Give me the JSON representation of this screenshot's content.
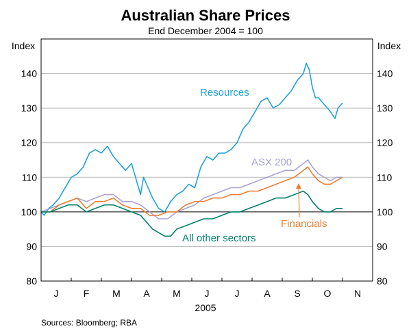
{
  "chart_data": {
    "type": "line",
    "title": "Australian Share Prices",
    "subtitle": "End December 2004 = 100",
    "y_label_left": "Index",
    "y_label_right": "Index",
    "ylim": [
      80,
      150
    ],
    "yticks": [
      80,
      90,
      100,
      110,
      120,
      130,
      140
    ],
    "xlim": [
      0,
      11
    ],
    "x_ticks": [
      {
        "label": "J",
        "at": 0.5
      },
      {
        "label": "F",
        "at": 1.5
      },
      {
        "label": "M",
        "at": 2.5
      },
      {
        "label": "A",
        "at": 3.5
      },
      {
        "label": "M",
        "at": 4.5
      },
      {
        "label": "J",
        "at": 5.5
      },
      {
        "label": "J",
        "at": 6.5
      },
      {
        "label": "A",
        "at": 7.5
      },
      {
        "label": "S",
        "at": 8.5
      },
      {
        "label": "O",
        "at": 9.5
      },
      {
        "label": "N",
        "at": 10.5
      }
    ],
    "xlabel": "2005",
    "grid": true,
    "source": "Sources: Bloomberg; RBA",
    "series": [
      {
        "name": "Resources",
        "color": "#1fa2dc",
        "x": [
          0,
          0.1,
          0.25,
          0.4,
          0.6,
          0.8,
          1.0,
          1.2,
          1.4,
          1.6,
          1.8,
          2.0,
          2.2,
          2.4,
          2.6,
          2.8,
          2.9,
          3.0,
          3.1,
          3.2,
          3.3,
          3.4,
          3.5,
          3.7,
          3.9,
          4.1,
          4.3,
          4.5,
          4.7,
          4.9,
          5.1,
          5.3,
          5.5,
          5.7,
          5.9,
          6.1,
          6.3,
          6.5,
          6.7,
          6.9,
          7.1,
          7.3,
          7.5,
          7.7,
          7.9,
          8.1,
          8.3,
          8.5,
          8.7,
          8.8,
          8.9,
          9.0,
          9.1,
          9.2,
          9.4,
          9.6,
          9.75,
          9.85,
          10.0
        ],
        "values": [
          100,
          99,
          101,
          102,
          104,
          107,
          110,
          111,
          113,
          117,
          118,
          117,
          119,
          116,
          114,
          112,
          113,
          114,
          111,
          108,
          105,
          110,
          108,
          104,
          101,
          100,
          103,
          105,
          106,
          108,
          107,
          113,
          116,
          115,
          117,
          117,
          118,
          120,
          124,
          126,
          129,
          132,
          133,
          130,
          131,
          133,
          135,
          138,
          140,
          143,
          141,
          136,
          133,
          133,
          131,
          129,
          127,
          130,
          131.5
        ]
      },
      {
        "name": "ASX 200",
        "color": "#a7a3d4",
        "x": [
          0,
          0.3,
          0.6,
          0.9,
          1.2,
          1.5,
          1.8,
          2.1,
          2.4,
          2.7,
          3.0,
          3.3,
          3.6,
          3.9,
          4.2,
          4.5,
          4.8,
          5.1,
          5.4,
          5.7,
          6.0,
          6.3,
          6.6,
          6.9,
          7.2,
          7.5,
          7.8,
          8.1,
          8.4,
          8.7,
          8.85,
          9.0,
          9.2,
          9.4,
          9.6,
          9.8,
          10.0
        ],
        "values": [
          100,
          101,
          102,
          103,
          104,
          103,
          104,
          105,
          105,
          103,
          103,
          102,
          100,
          98,
          98,
          100,
          101,
          102,
          104,
          105,
          106,
          107,
          107,
          108,
          109,
          110,
          111,
          112,
          112,
          114,
          115,
          113,
          111,
          110,
          109,
          110,
          110
        ]
      },
      {
        "name": "Financials",
        "color": "#ed7d31",
        "x": [
          0,
          0.3,
          0.6,
          0.9,
          1.2,
          1.5,
          1.8,
          2.1,
          2.4,
          2.7,
          3.0,
          3.3,
          3.6,
          3.9,
          4.2,
          4.5,
          4.8,
          5.1,
          5.4,
          5.7,
          6.0,
          6.3,
          6.6,
          6.9,
          7.2,
          7.5,
          7.8,
          8.1,
          8.4,
          8.7,
          8.85,
          9.0,
          9.2,
          9.4,
          9.6,
          9.8,
          10.0
        ],
        "values": [
          100,
          100,
          102,
          103,
          104,
          101,
          103,
          103,
          104,
          102,
          101,
          101,
          99,
          99,
          100,
          100,
          102,
          103,
          103,
          104,
          104,
          105,
          105,
          106,
          106,
          107,
          108,
          109,
          110,
          112,
          113,
          111,
          109,
          108,
          108,
          109,
          110
        ]
      },
      {
        "name": "All other sectors",
        "color": "#00806a",
        "x": [
          0,
          0.3,
          0.6,
          0.9,
          1.2,
          1.5,
          1.8,
          2.1,
          2.4,
          2.7,
          3.0,
          3.3,
          3.5,
          3.7,
          3.9,
          4.1,
          4.3,
          4.5,
          4.8,
          5.1,
          5.4,
          5.7,
          6.0,
          6.3,
          6.6,
          6.9,
          7.2,
          7.5,
          7.8,
          8.1,
          8.4,
          8.7,
          8.85,
          9.0,
          9.2,
          9.4,
          9.6,
          9.8,
          10.0
        ],
        "values": [
          100,
          100,
          101,
          102,
          102,
          100,
          101,
          102,
          102,
          101,
          100,
          99,
          97,
          95,
          94,
          93,
          93,
          95,
          96,
          97,
          98,
          98,
          99,
          100,
          100,
          101,
          102,
          103,
          104,
          104,
          105,
          106,
          105,
          103,
          101,
          100,
          100,
          101,
          101
        ]
      }
    ],
    "annotations": [
      {
        "series": "Resources",
        "label": "Resources"
      },
      {
        "series": "ASX 200",
        "label": "ASX 200"
      },
      {
        "series": "Financials",
        "label": "Financials"
      },
      {
        "series": "All other sectors",
        "label": "All other sectors"
      }
    ]
  }
}
